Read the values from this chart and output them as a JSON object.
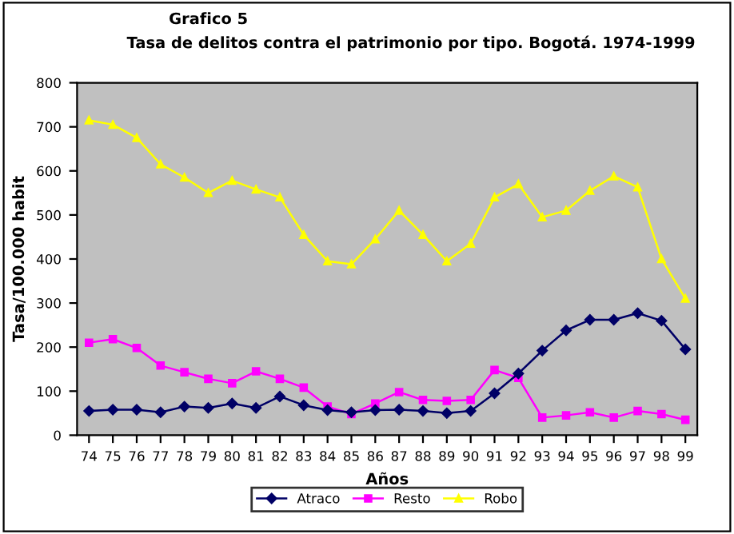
{
  "chart_data": {
    "type": "line",
    "title": "Grafico 5",
    "subtitle": "Tasa de delitos contra el patrimonio por tipo. Bogotá. 1974-1999",
    "xlabel": "Años",
    "ylabel": "Tasa/100.000 habit",
    "categories": [
      "74",
      "75",
      "76",
      "77",
      "78",
      "79",
      "80",
      "81",
      "82",
      "83",
      "84",
      "85",
      "86",
      "87",
      "88",
      "89",
      "90",
      "91",
      "92",
      "93",
      "94",
      "95",
      "96",
      "97",
      "98",
      "99"
    ],
    "series": [
      {
        "name": "Atraco",
        "color": "#000066",
        "marker": "diamond",
        "values": [
          55,
          58,
          58,
          52,
          65,
          62,
          72,
          62,
          88,
          68,
          57,
          52,
          57,
          58,
          55,
          50,
          55,
          95,
          140,
          192,
          238,
          262,
          262,
          277,
          260,
          195
        ]
      },
      {
        "name": "Resto",
        "color": "#ff00ff",
        "marker": "square",
        "values": [
          210,
          218,
          198,
          158,
          143,
          128,
          118,
          145,
          128,
          108,
          65,
          48,
          72,
          98,
          80,
          78,
          80,
          148,
          130,
          40,
          45,
          52,
          40,
          55,
          48,
          35
        ]
      },
      {
        "name": "Robo",
        "color": "#ffff00",
        "marker": "triangle",
        "values": [
          715,
          705,
          675,
          615,
          585,
          550,
          578,
          558,
          540,
          455,
          395,
          388,
          445,
          510,
          455,
          395,
          435,
          540,
          570,
          495,
          510,
          555,
          588,
          563,
          400,
          310
        ]
      }
    ],
    "ylim": [
      0,
      800
    ],
    "yticks": [
      0,
      100,
      200,
      300,
      400,
      500,
      600,
      700,
      800
    ],
    "grid": false,
    "legend": "bottom"
  }
}
